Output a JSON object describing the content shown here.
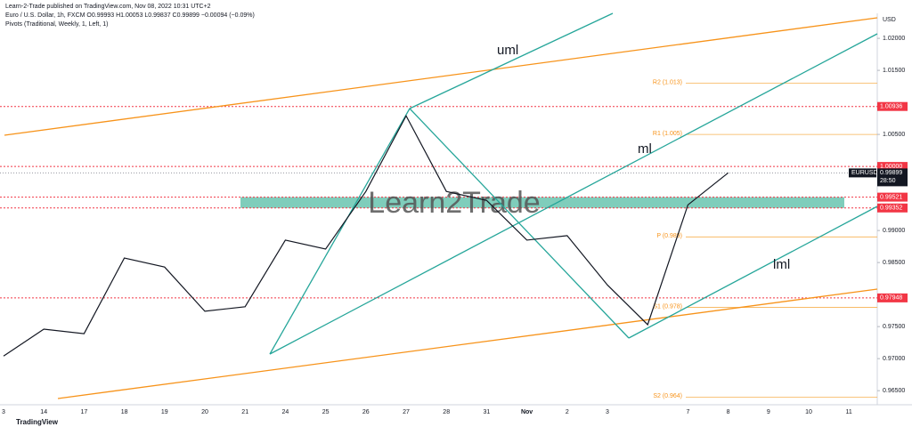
{
  "header": {
    "publisher": "Learn-2-Trade published on TradingView.com, Nov 08, 2022 10:31 UTC+2",
    "symbol_line": "Euro / U.S. Dollar, 1h, FXCM  O0.99993 H1.00053 L0.99837 C0.99899 −0.00094 (−0.09%)",
    "indicator": "Pivots (Traditional, Weekly, 1, Left, 1)"
  },
  "footer": {
    "logo": "TradingView"
  },
  "chart_data": {
    "type": "line",
    "watermark": "Learn2Trade",
    "currency": "USD",
    "categories": [
      "3",
      "14",
      "17",
      "18",
      "19",
      "20",
      "21",
      "24",
      "25",
      "26",
      "27",
      "28",
      "31",
      "Nov",
      "2",
      "3",
      null,
      "7",
      "8",
      "9",
      "10",
      "11"
    ],
    "series": [
      {
        "name": "EURUSD",
        "color": "#131722",
        "values": [
          0.9704,
          0.9746,
          0.9739,
          0.9857,
          0.9843,
          0.9774,
          0.9781,
          0.9885,
          0.9871,
          0.9961,
          1.0079,
          0.9961,
          0.9947,
          0.9885,
          0.9892,
          0.9815,
          0.9753,
          0.994,
          0.999,
          null,
          null,
          null
        ]
      }
    ],
    "ylim": [
      0.9628,
      1.0239
    ],
    "yticks": [
      {
        "value": 1.02,
        "label": "1.02000"
      },
      {
        "value": 1.015,
        "label": "1.01500"
      },
      {
        "value": 1.005,
        "label": "1.00500"
      },
      {
        "value": 0.99,
        "label": "0.99000"
      },
      {
        "value": 0.985,
        "label": "0.98500"
      },
      {
        "value": 0.975,
        "label": "0.97500"
      },
      {
        "value": 0.97,
        "label": "0.97000"
      },
      {
        "value": 0.965,
        "label": "0.96500"
      }
    ],
    "price_lines": [
      {
        "value": 1.00936,
        "color": "#f23645"
      },
      {
        "value": 1,
        "label": "1.00000",
        "color": "#f23645"
      },
      {
        "value": 0.99521,
        "color": "#f23645"
      },
      {
        "value": 0.99352,
        "color": "#f23645"
      },
      {
        "value": 0.97948,
        "color": "#f23645"
      }
    ],
    "last_price": {
      "symbol": "EURUSD",
      "value": 0.99899,
      "countdown": "28:50"
    },
    "zone": {
      "from": 0.99352,
      "to": 0.99521,
      "color": "#7fcdbb"
    },
    "pivots": [
      {
        "label": "R2 (1.013)",
        "value": 1.013
      },
      {
        "label": "R1 (1.005)",
        "value": 1.005
      },
      {
        "label": "P (0.989)",
        "value": 0.989
      },
      {
        "label": "S1 (0.978)",
        "value": 0.978
      },
      {
        "label": "S2 (0.964)",
        "value": 0.964
      }
    ],
    "annotations": [
      "uml",
      "ml",
      "lml"
    ]
  }
}
